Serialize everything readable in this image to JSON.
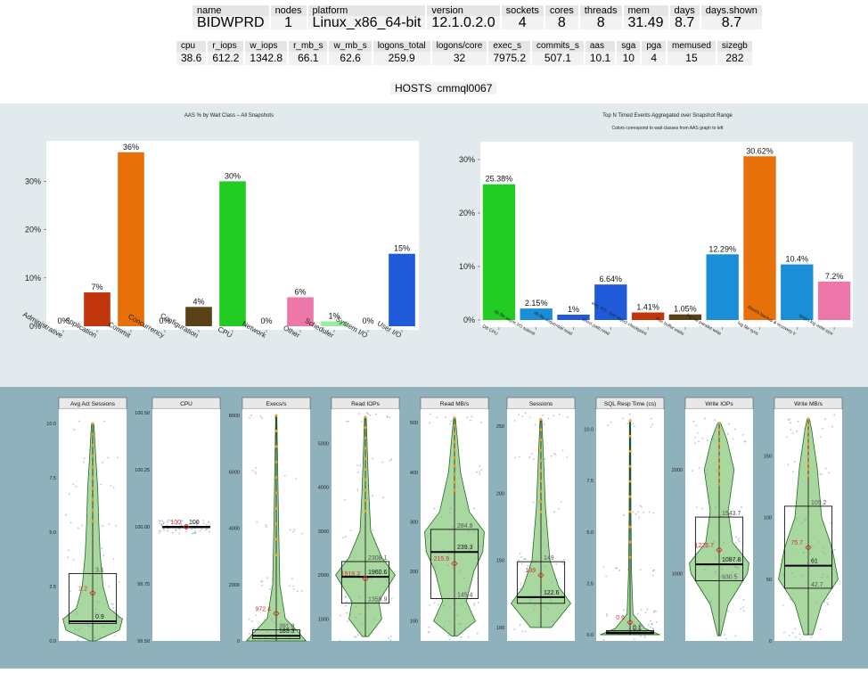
{
  "summary1": {
    "headers": [
      "name",
      "nodes",
      "platform",
      "version",
      "sockets",
      "cores",
      "threads",
      "mem",
      "days",
      "days.shown"
    ],
    "values": [
      "BIDWPRD",
      "1",
      "Linux_x86_64-bit",
      "12.1.0.2.0",
      "4",
      "8",
      "8",
      "31.49",
      "8.7",
      "8.7"
    ]
  },
  "summary2": {
    "headers": [
      "cpu",
      "r_iops",
      "w_iops",
      "r_mb_s",
      "w_mb_s",
      "logons_total",
      "logons/core",
      "exec_s",
      "commits_s",
      "aas",
      "sga",
      "pga",
      "memused",
      "sizegb"
    ],
    "values": [
      "38.6",
      "612.2",
      "1342.8",
      "66.1",
      "62.6",
      "259.9",
      "32",
      "7975.2",
      "507.1",
      "10.1",
      "10",
      "4",
      "15",
      "282"
    ]
  },
  "hosts": {
    "label": "HOSTS",
    "value": "cmmql0067"
  },
  "chart_data": [
    {
      "type": "bar",
      "title": "AAS % by Wait Class – All Snapshots",
      "categories": [
        "Administrative",
        "Application",
        "Commit",
        "Concurrency",
        "Configuration",
        "CPU",
        "Network",
        "Other",
        "Scheduler",
        "System I/O",
        "User I/O"
      ],
      "values": [
        0,
        7,
        36,
        0,
        4,
        30,
        0,
        6,
        1,
        0,
        15
      ],
      "labels": [
        "0%",
        "7%",
        "36%",
        "0%",
        "4%",
        "30%",
        "0%",
        "6%",
        "1%",
        "0%",
        "15%"
      ],
      "colors": [
        "#999999",
        "#c0350b",
        "#e8700a",
        "#999999",
        "#5a4217",
        "#22cc22",
        "#999999",
        "#ee77aa",
        "#99ee99",
        "#999999",
        "#1f5ad8"
      ],
      "yticks": [
        "0%",
        "10%",
        "20%",
        "30%"
      ],
      "ylim": [
        0,
        38
      ]
    },
    {
      "type": "bar",
      "title": "Top N Timed Events Aggregated over Snapshot Range",
      "subtitle": "Colors correspond to wait classes from AAS graph to left",
      "categories": [
        "DB CPU",
        "db file async I/O submit",
        "db file sequential read",
        "direct path read",
        "enq: KO - fast object ckeckpoint",
        "free buffer waits",
        "log file parallel write",
        "log file sync",
        "RMAN backup & recovery I/",
        "target log write size"
      ],
      "values": [
        25.38,
        2.15,
        1,
        6.64,
        1.41,
        1.05,
        12.29,
        30.62,
        10.4,
        7.2
      ],
      "labels": [
        "25.38%",
        "2.15%",
        "1%",
        "6.64%",
        "1.41%",
        "1.05%",
        "12.29%",
        "30.62%",
        "10.4%",
        "7.2%"
      ],
      "colors": [
        "#22cc22",
        "#1a8fd8",
        "#1f5ad8",
        "#1f5ad8",
        "#c0350b",
        "#5a4217",
        "#1a8fd8",
        "#e8700a",
        "#1a8fd8",
        "#ee77aa"
      ],
      "yticks": [
        "0%",
        "10%",
        "20%",
        "30%"
      ],
      "ylim": [
        0,
        33
      ]
    },
    {
      "type": "violin",
      "panels": [
        {
          "title": "Avg Act Sessions",
          "ylim": [
            0,
            10.5
          ],
          "yticks": [
            0,
            2.5,
            5,
            7.5,
            10
          ],
          "ytick_labels": [
            "0.0",
            "2.5",
            "5.0",
            "7.5",
            "10.0"
          ],
          "q1": 0.8,
          "median": 0.9,
          "q3": 3.1,
          "mean": 2.2,
          "whisker_lo": 0,
          "whisker_hi": 10,
          "labels": {
            "mean": "2.2",
            "median": "0.9",
            "q3": "3.1"
          },
          "shape": [
            [
              0,
              0.1
            ],
            [
              0.5,
              0.9
            ],
            [
              1,
              1.0
            ],
            [
              1.5,
              0.55
            ],
            [
              2.5,
              0.35
            ],
            [
              4,
              0.25
            ],
            [
              5.5,
              0.2
            ],
            [
              7,
              0.17
            ],
            [
              8.5,
              0.1
            ],
            [
              10,
              0.04
            ]
          ]
        },
        {
          "title": "CPU",
          "ylim": [
            99.5,
            100.5
          ],
          "yticks": [
            99.5,
            99.75,
            100,
            100.25,
            100.5
          ],
          "ytick_labels": [
            "99.50",
            "99.75",
            "100.00",
            "100.25",
            "100.50"
          ],
          "q1": 100,
          "median": 100,
          "q3": 100,
          "mean": 100,
          "whisker_lo": 100,
          "whisker_hi": 100,
          "labels": {
            "mean": "100",
            "median": "100"
          },
          "shape": [
            [
              100,
              0.02
            ]
          ]
        },
        {
          "title": "Execs/s",
          "ylim": [
            0,
            8100
          ],
          "yticks": [
            0,
            2000,
            4000,
            6000,
            8000
          ],
          "ytick_labels": [
            "0",
            "2000",
            "4000",
            "6000",
            "8000"
          ],
          "q1": 80,
          "median": 183.3,
          "q3": 391.6,
          "mean": 972.4,
          "whisker_lo": 0,
          "whisker_hi": 8000,
          "labels": {
            "mean": "972.4",
            "median": "183.3",
            "q3": "391.6"
          },
          "shape": [
            [
              0,
              1.0
            ],
            [
              300,
              0.75
            ],
            [
              800,
              0.3
            ],
            [
              2000,
              0.12
            ],
            [
              4000,
              0.08
            ],
            [
              6000,
              0.05
            ],
            [
              8000,
              0.02
            ]
          ]
        },
        {
          "title": "Read IOPs",
          "ylim": [
            500,
            5700
          ],
          "yticks": [
            1000,
            2000,
            3000,
            4000,
            5000
          ],
          "ytick_labels": [
            "1000",
            "2000",
            "3000",
            "4000",
            "5000"
          ],
          "q1": 1359.9,
          "median": 1960.6,
          "q3": 2308.1,
          "mean": 1918.3,
          "whisker_lo": 600,
          "whisker_hi": 5600,
          "labels": {
            "mean": "1918.3",
            "median": "1960.6",
            "q3": "2308.1",
            "q1": "1359.9"
          },
          "shape": [
            [
              600,
              0.1
            ],
            [
              1000,
              0.55
            ],
            [
              1400,
              0.45
            ],
            [
              2000,
              1.0
            ],
            [
              2400,
              0.55
            ],
            [
              3000,
              0.18
            ],
            [
              3800,
              0.12
            ],
            [
              4500,
              0.08
            ],
            [
              5600,
              0.03
            ]
          ]
        },
        {
          "title": "Read MB/s",
          "ylim": [
            60,
            520
          ],
          "yticks": [
            100,
            200,
            300,
            400,
            500
          ],
          "ytick_labels": [
            "100",
            "200",
            "300",
            "400",
            "500"
          ],
          "q1": 145.4,
          "median": 239.3,
          "q3": 284.8,
          "mean": 215.9,
          "whisker_lo": 70,
          "whisker_hi": 510,
          "labels": {
            "mean": "215.9",
            "median": "239.3",
            "q3": "284.8",
            "q1": "145.4"
          },
          "shape": [
            [
              70,
              0.1
            ],
            [
              100,
              0.7
            ],
            [
              140,
              0.4
            ],
            [
              200,
              0.65
            ],
            [
              240,
              0.95
            ],
            [
              280,
              1.0
            ],
            [
              320,
              0.5
            ],
            [
              400,
              0.2
            ],
            [
              510,
              0.03
            ]
          ]
        },
        {
          "title": "Sessions",
          "ylim": [
            90,
            260
          ],
          "yticks": [
            100,
            150,
            200,
            250
          ],
          "ytick_labels": [
            "100",
            "150",
            "200",
            "250"
          ],
          "q1": 118,
          "median": 122.6,
          "q3": 149,
          "mean": 139,
          "whisker_lo": 100,
          "whisker_hi": 255,
          "labels": {
            "mean": "139",
            "median": "122.6",
            "q3": "149"
          },
          "shape": [
            [
              100,
              0.35
            ],
            [
              118,
              1.0
            ],
            [
              130,
              0.6
            ],
            [
              150,
              0.3
            ],
            [
              190,
              0.15
            ],
            [
              230,
              0.08
            ],
            [
              255,
              0.03
            ]
          ]
        },
        {
          "title": "SQL Resp Time (cs)",
          "ylim": [
            -0.3,
            10.8
          ],
          "yticks": [
            0,
            2.5,
            5,
            7.5,
            10
          ],
          "ytick_labels": [
            "0.0",
            "2.5",
            "5.0",
            "7.5",
            "10.0"
          ],
          "q1": 0.05,
          "median": 0.1,
          "q3": 0.2,
          "mean": 0.6,
          "whisker_lo": 0,
          "whisker_hi": 10.4,
          "labels": {
            "mean": "0.6",
            "median": "0.1",
            "q3": "0.2"
          },
          "shape": [
            [
              0,
              1.0
            ],
            [
              0.3,
              0.5
            ],
            [
              1,
              0.1
            ],
            [
              3,
              0.05
            ],
            [
              6,
              0.03
            ],
            [
              10.4,
              0.02
            ]
          ]
        },
        {
          "title": "Write IOPs",
          "ylim": [
            350,
            2550
          ],
          "yticks": [
            1000,
            2000
          ],
          "ytick_labels": [
            "1000",
            "2000"
          ],
          "q1": 930.5,
          "median": 1087.8,
          "q3": 1543.7,
          "mean": 1226.7,
          "whisker_lo": 400,
          "whisker_hi": 2450,
          "labels": {
            "mean": "1226.7",
            "median": "1087.8",
            "q3": "1543.7",
            "q1": "930.5"
          },
          "shape": [
            [
              400,
              0.05
            ],
            [
              700,
              0.3
            ],
            [
              1000,
              0.95
            ],
            [
              1100,
              1.0
            ],
            [
              1300,
              0.45
            ],
            [
              1600,
              0.3
            ],
            [
              2000,
              0.5
            ],
            [
              2300,
              0.25
            ],
            [
              2450,
              0.05
            ]
          ]
        },
        {
          "title": "Write MB/s",
          "ylim": [
            0,
            185
          ],
          "yticks": [
            0,
            50,
            100,
            150
          ],
          "ytick_labels": [
            "0",
            "50",
            "100",
            "150"
          ],
          "q1": 42.7,
          "median": 61,
          "q3": 109.2,
          "mean": 75.7,
          "whisker_lo": 5,
          "whisker_hi": 180,
          "labels": {
            "mean": "75.7",
            "median": "61",
            "q3": "109.2",
            "q1": "42.7"
          },
          "shape": [
            [
              5,
              0.15
            ],
            [
              30,
              0.45
            ],
            [
              50,
              1.0
            ],
            [
              75,
              0.8
            ],
            [
              100,
              0.45
            ],
            [
              140,
              0.3
            ],
            [
              170,
              0.12
            ],
            [
              180,
              0.04
            ]
          ]
        }
      ]
    }
  ]
}
